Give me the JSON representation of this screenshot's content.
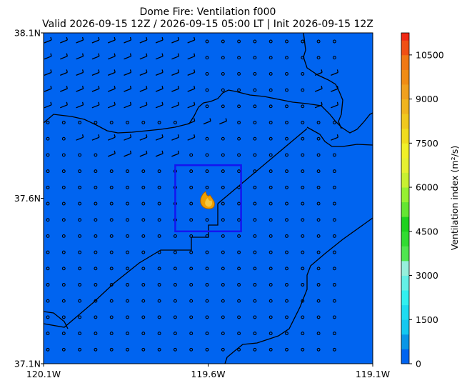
{
  "chart_data": {
    "type": "heatmap",
    "title_line1": "Dome Fire: Ventilation f000",
    "title_line2": "Valid 2026-09-15 12Z / 2026-09-15 05:00 LT | Init 2026-09-15 12Z",
    "x_axis": {
      "ticks": [
        {
          "value": -120.1,
          "label": "120.1W"
        },
        {
          "value": -119.6,
          "label": "119.6W"
        },
        {
          "value": -119.1,
          "label": "119.1W"
        }
      ],
      "range": [
        -120.1,
        -119.1
      ]
    },
    "y_axis": {
      "ticks": [
        {
          "value": 37.1,
          "label": "37.1N"
        },
        {
          "value": 37.6,
          "label": "37.6N"
        },
        {
          "value": 38.1,
          "label": "38.1N"
        }
      ],
      "range": [
        37.1,
        38.1
      ]
    },
    "colorbar": {
      "label": "Ventilation index (m²/s)",
      "range": [
        0,
        11250
      ],
      "tick_values": [
        0,
        1500,
        3000,
        4500,
        6000,
        7500,
        9000,
        10500
      ],
      "tick_labels": [
        "0",
        "1500",
        "3000",
        "4500",
        "6000",
        "7500",
        "9000",
        "10500"
      ],
      "levels": [
        0,
        500,
        1000,
        1500,
        2000,
        2500,
        3000,
        3500,
        4000,
        4500,
        5000,
        5500,
        6000,
        6500,
        7000,
        7500,
        8000,
        8500,
        9000,
        9500,
        10000,
        10500,
        11000,
        11250
      ],
      "colors": [
        "#0064f0",
        "#0a96e6",
        "#14c8f0",
        "#1edcf0",
        "#32f0f0",
        "#64f0e6",
        "#96f0dc",
        "#50e650",
        "#32dc32",
        "#1ed21e",
        "#64e632",
        "#96f032",
        "#c8f032",
        "#e6f032",
        "#f0f028",
        "#f0dc1e",
        "#f0c81e",
        "#f0b41e",
        "#f0a01e",
        "#f08c14",
        "#f07814",
        "#f05014",
        "#f02814"
      ]
    },
    "field": {
      "value_everywhere": 0,
      "color": "#0064f0"
    },
    "fire_location": {
      "lon": -119.6,
      "lat": 37.6
    },
    "analysis_box": {
      "lon_min": -119.7,
      "lon_max": -119.5,
      "lat_min": 37.5,
      "lat_max": 37.7
    },
    "wind_barbs": {
      "note_calm": "circles denote calm winds",
      "barb_color": "#000000"
    }
  }
}
